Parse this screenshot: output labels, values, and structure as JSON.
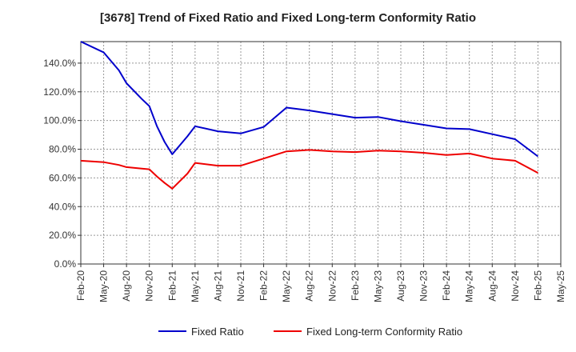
{
  "chart_data": {
    "type": "line",
    "title": "[3678]  Trend of Fixed Ratio and Fixed Long-term Conformity Ratio",
    "xlabel": "",
    "ylabel": "",
    "ylim": [
      0,
      155
    ],
    "y_ticks": [
      "0.0%",
      "20.0%",
      "40.0%",
      "60.0%",
      "80.0%",
      "100.0%",
      "120.0%",
      "140.0%"
    ],
    "x_ticks": [
      "Feb-20",
      "May-20",
      "Aug-20",
      "Nov-20",
      "Feb-21",
      "May-21",
      "Aug-21",
      "Nov-21",
      "Feb-22",
      "May-22",
      "Aug-22",
      "Nov-22",
      "Feb-23",
      "May-23",
      "Aug-23",
      "Nov-23",
      "Feb-24",
      "May-24",
      "Aug-24",
      "Nov-24",
      "Feb-25",
      "May-25"
    ],
    "grid": true,
    "legend_position": "bottom",
    "x": [
      "Feb-20",
      "May-20",
      "Jul-20",
      "Aug-20",
      "Oct-20",
      "Nov-20",
      "Dec-20",
      "Jan-21",
      "Feb-21",
      "Apr-21",
      "May-21",
      "Aug-21",
      "Nov-21",
      "Feb-22",
      "May-22",
      "Aug-22",
      "Nov-22",
      "Feb-23",
      "May-23",
      "Aug-23",
      "Nov-23",
      "Feb-24",
      "May-24",
      "Aug-24",
      "Nov-24",
      "Feb-25"
    ],
    "series": [
      {
        "name": "Fixed Ratio",
        "color": "#0000cc",
        "values": [
          155.5,
          147.5,
          135,
          126,
          115,
          110,
          96,
          85,
          76.5,
          89,
          96,
          92.5,
          91,
          95.5,
          109,
          107,
          104.5,
          102,
          102.5,
          99.5,
          97,
          94.5,
          94,
          90.5,
          87,
          75
        ]
      },
      {
        "name": "Fixed Long-term Conformity Ratio",
        "color": "#ee0000",
        "values": [
          72,
          71,
          69,
          67.5,
          66.5,
          66,
          61,
          56.5,
          52.5,
          63,
          70.5,
          68.5,
          68.5,
          73.5,
          78.5,
          79.5,
          78.5,
          78,
          79,
          78.5,
          77.5,
          76,
          77,
          73.5,
          72,
          63.5
        ]
      }
    ]
  }
}
